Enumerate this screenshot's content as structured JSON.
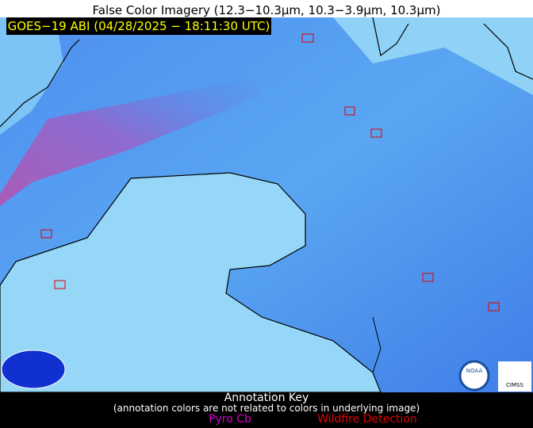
{
  "header": {
    "title": "False Color Imagery (12.3−10.3µm, 10.3−3.9µm, 10.3µm)",
    "label": "GOES−19 ABI (04/28/2025 − 18:11:30 UTC)"
  },
  "logos": [
    "NOAA",
    "CIMSS"
  ],
  "key": {
    "title": "Annotation Key",
    "note": "(annotation colors are not related to colors in underlying image)",
    "items": [
      {
        "label": "Pyro Cb",
        "color": "#d000d0"
      },
      {
        "label": "Wildfire Detection",
        "color": "#e00000"
      }
    ]
  }
}
